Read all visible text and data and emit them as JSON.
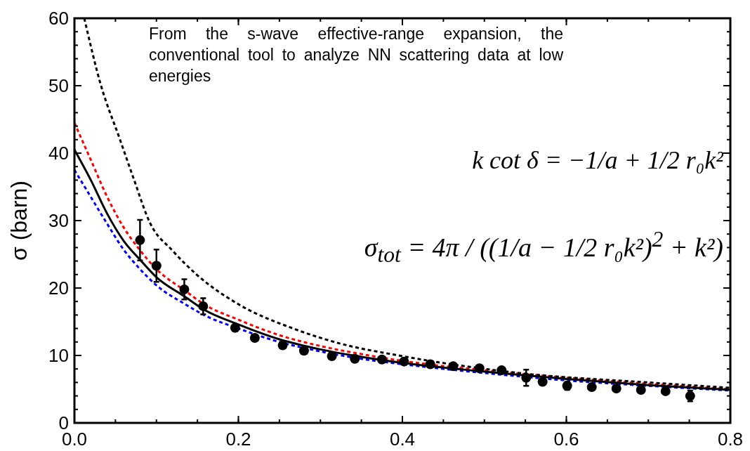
{
  "chart_data": {
    "type": "scatter",
    "ylabel": "σ (barn)",
    "xlim": [
      0,
      0.8
    ],
    "ylim": [
      0,
      60
    ],
    "xticks": [
      {
        "value": 0,
        "label": "0.0"
      },
      {
        "value": 0.2,
        "label": "0.2"
      },
      {
        "value": 0.4,
        "label": "0.4"
      },
      {
        "value": 0.6,
        "label": "0.6"
      },
      {
        "value": 0.8,
        "label": "0.8"
      }
    ],
    "yticks": [
      0,
      10,
      20,
      30,
      40,
      50,
      60
    ],
    "grid": false,
    "annotations": [
      "From the s-wave effective-range expansion, the conventional tool to analyze NN scattering data at low energies",
      "k cot δ = −1/a + 1/2 r₀k²",
      "σ$_{tot}$ = 4π / ((1/a − 1/2 r₀k²)$^{2}$ + k²)"
    ],
    "series": [
      {
        "type": "line",
        "color": "#0000ff",
        "line_style": "dotted",
        "x": [
          0,
          0.02,
          0.04,
          0.06,
          0.08,
          0.1,
          0.135,
          0.158,
          0.2,
          0.25,
          0.3,
          0.35,
          0.4,
          0.5,
          0.6,
          0.7,
          0.8
        ],
        "values": [
          37.5,
          33.5,
          29.5,
          25.7,
          22.8,
          20.4,
          17.6,
          16,
          14,
          12,
          10.6,
          9.5,
          8.7,
          7.4,
          6.3,
          5.5,
          4.8
        ]
      },
      {
        "type": "line",
        "color": "#ff0000",
        "line_style": "dotted",
        "x": [
          0,
          0.02,
          0.04,
          0.06,
          0.08,
          0.1,
          0.135,
          0.158,
          0.2,
          0.25,
          0.3,
          0.35,
          0.4,
          0.5,
          0.6,
          0.7,
          0.8
        ],
        "values": [
          44.5,
          39,
          33.5,
          29,
          25.6,
          22.8,
          19.6,
          17.6,
          15.3,
          13,
          11.4,
          10.2,
          9.2,
          7.8,
          6.7,
          5.8,
          5.0
        ]
      },
      {
        "type": "line",
        "color": "#000000",
        "line_style": "solid",
        "x": [
          0,
          0.02,
          0.04,
          0.06,
          0.08,
          0.1,
          0.135,
          0.158,
          0.2,
          0.25,
          0.3,
          0.35,
          0.4,
          0.5,
          0.6,
          0.7,
          0.8
        ],
        "values": [
          40.5,
          36,
          31,
          27,
          24.2,
          21.6,
          18.7,
          16.8,
          14.6,
          12.4,
          10.9,
          9.8,
          8.9,
          7.6,
          6.5,
          5.6,
          4.9
        ]
      },
      {
        "type": "line",
        "color": "#000000",
        "line_style": "dotted",
        "x": [
          0.012,
          0.032,
          0.055,
          0.072,
          0.092,
          0.12,
          0.149,
          0.2,
          0.269,
          0.32,
          0.4,
          0.55,
          0.7,
          0.8
        ],
        "values": [
          60,
          50.2,
          42.2,
          36.3,
          29.7,
          25.5,
          22,
          17.6,
          13.9,
          11.9,
          9.9,
          7.3,
          6,
          5.2
        ]
      },
      {
        "type": "scatter",
        "color": "#000000",
        "marker": "circle",
        "x": [
          0.08,
          0.1,
          0.134,
          0.157,
          0.196,
          0.22,
          0.254,
          0.28,
          0.314,
          0.342,
          0.375,
          0.402,
          0.434,
          0.462,
          0.494,
          0.521,
          0.551,
          0.571,
          0.601,
          0.631,
          0.661,
          0.691,
          0.721,
          0.751
        ],
        "values": [
          27.1,
          23.3,
          19.8,
          17.3,
          14.1,
          12.6,
          11.5,
          10.7,
          9.9,
          9.5,
          9.4,
          9.1,
          8.7,
          8.4,
          8.1,
          7.8,
          6.7,
          6.1,
          5.5,
          5.3,
          5.1,
          4.9,
          4.7,
          4.0
        ],
        "errors": [
          3,
          2.4,
          1.5,
          1.2,
          0.5,
          null,
          null,
          null,
          null,
          null,
          null,
          null,
          null,
          null,
          null,
          null,
          1.2,
          null,
          0.6,
          null,
          null,
          null,
          null,
          0.8
        ]
      }
    ]
  }
}
